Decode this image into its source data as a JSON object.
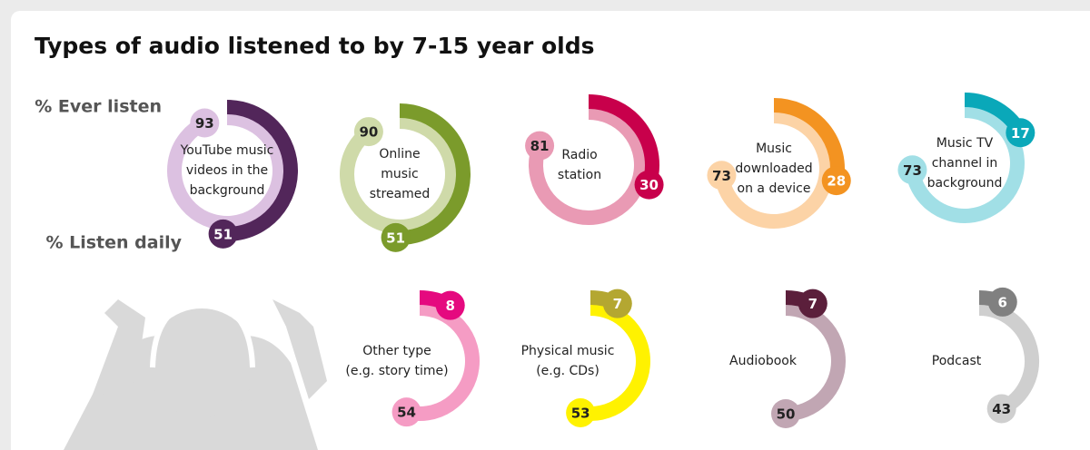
{
  "chart_data": {
    "type": "radial-bar",
    "title": "Types of audio listened to by 7-15 year olds",
    "categories": [
      [
        "YouTube music",
        "videos in the",
        "background"
      ],
      [
        "Online",
        "music",
        "streamed"
      ],
      [
        "Radio",
        "station"
      ],
      [
        "Music",
        "downloaded",
        "on a device"
      ],
      [
        "Music TV",
        "channel in",
        "background"
      ],
      [
        "Other type",
        "(e.g. story time)"
      ],
      [
        "Physical music",
        "(e.g. CDs)"
      ],
      [
        "Audiobook"
      ],
      [
        "Podcast"
      ]
    ],
    "series": [
      {
        "name": "% Ever listen",
        "values": [
          93,
          90,
          81,
          73,
          73,
          54,
          53,
          50,
          43
        ],
        "colors": [
          "#dcc1e1",
          "#cfdaa9",
          "#e99ab4",
          "#fcd3a6",
          "#a1dfe6",
          "#f59cc4",
          "#fff200",
          "#c1a6b3",
          "#cfcfcf"
        ]
      },
      {
        "name": "% Listen daily",
        "values": [
          51,
          51,
          30,
          28,
          17,
          8,
          7,
          7,
          6
        ],
        "colors": [
          "#52265a",
          "#7b9b2b",
          "#c8004b",
          "#f39321",
          "#0aa8b9",
          "#e5097f",
          "#b4a731",
          "#5b1f3b",
          "#808080"
        ]
      }
    ]
  }
}
